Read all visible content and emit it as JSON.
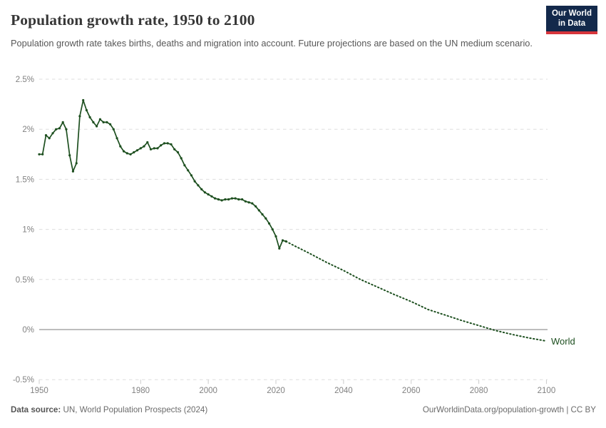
{
  "header": {
    "title": "Population growth rate, 1950 to 2100",
    "subtitle": "Population growth rate takes births, deaths and migration into account. Future projections are based on the UN medium scenario.",
    "logo": {
      "line1": "Our World",
      "line2": "in Data"
    }
  },
  "chart_data": {
    "type": "line",
    "title": "Population growth rate, 1950 to 2100",
    "xlabel": "",
    "ylabel": "",
    "unit": "%",
    "xlim": [
      1950,
      2100
    ],
    "ylim": [
      -0.5,
      2.5
    ],
    "grid": "dashed horizontal gridlines, solid zero line",
    "legend_position": "end-of-line entity label",
    "entity_label": "World",
    "y_ticks": [
      {
        "value": 2.5,
        "label": "2.5%"
      },
      {
        "value": 2.0,
        "label": "2%"
      },
      {
        "value": 1.5,
        "label": "1.5%"
      },
      {
        "value": 1.0,
        "label": "1%"
      },
      {
        "value": 0.5,
        "label": "0.5%"
      },
      {
        "value": 0.0,
        "label": "0%"
      },
      {
        "value": -0.5,
        "label": "-0.5%"
      }
    ],
    "x_ticks": [
      {
        "value": 1950,
        "label": "1950"
      },
      {
        "value": 1980,
        "label": "1980"
      },
      {
        "value": 2000,
        "label": "2000"
      },
      {
        "value": 2020,
        "label": "2020"
      },
      {
        "value": 2040,
        "label": "2040"
      },
      {
        "value": 2060,
        "label": "2060"
      },
      {
        "value": 2080,
        "label": "2080"
      },
      {
        "value": 2100,
        "label": "2100"
      }
    ],
    "series": [
      {
        "name": "World (observed)",
        "style": "solid",
        "markers": true,
        "points": [
          [
            1950,
            1.75
          ],
          [
            1951,
            1.75
          ],
          [
            1952,
            1.94
          ],
          [
            1953,
            1.91
          ],
          [
            1954,
            1.96
          ],
          [
            1955,
            2.0
          ],
          [
            1956,
            2.01
          ],
          [
            1957,
            2.07
          ],
          [
            1958,
            2.0
          ],
          [
            1959,
            1.74
          ],
          [
            1960,
            1.58
          ],
          [
            1961,
            1.66
          ],
          [
            1962,
            2.13
          ],
          [
            1963,
            2.29
          ],
          [
            1964,
            2.19
          ],
          [
            1965,
            2.12
          ],
          [
            1966,
            2.07
          ],
          [
            1967,
            2.03
          ],
          [
            1968,
            2.1
          ],
          [
            1969,
            2.07
          ],
          [
            1970,
            2.07
          ],
          [
            1971,
            2.05
          ],
          [
            1972,
            2.0
          ],
          [
            1973,
            1.91
          ],
          [
            1974,
            1.83
          ],
          [
            1975,
            1.78
          ],
          [
            1976,
            1.76
          ],
          [
            1977,
            1.75
          ],
          [
            1978,
            1.77
          ],
          [
            1979,
            1.79
          ],
          [
            1980,
            1.81
          ],
          [
            1981,
            1.83
          ],
          [
            1982,
            1.87
          ],
          [
            1983,
            1.8
          ],
          [
            1984,
            1.81
          ],
          [
            1985,
            1.81
          ],
          [
            1986,
            1.84
          ],
          [
            1987,
            1.86
          ],
          [
            1988,
            1.86
          ],
          [
            1989,
            1.85
          ],
          [
            1990,
            1.8
          ],
          [
            1991,
            1.77
          ],
          [
            1992,
            1.71
          ],
          [
            1993,
            1.64
          ],
          [
            1994,
            1.59
          ],
          [
            1995,
            1.54
          ],
          [
            1996,
            1.48
          ],
          [
            1997,
            1.44
          ],
          [
            1998,
            1.4
          ],
          [
            1999,
            1.37
          ],
          [
            2000,
            1.35
          ],
          [
            2001,
            1.33
          ],
          [
            2002,
            1.31
          ],
          [
            2003,
            1.3
          ],
          [
            2004,
            1.29
          ],
          [
            2005,
            1.3
          ],
          [
            2006,
            1.3
          ],
          [
            2007,
            1.31
          ],
          [
            2008,
            1.31
          ],
          [
            2009,
            1.3
          ],
          [
            2010,
            1.3
          ],
          [
            2011,
            1.28
          ],
          [
            2012,
            1.27
          ],
          [
            2013,
            1.26
          ],
          [
            2014,
            1.23
          ],
          [
            2015,
            1.19
          ],
          [
            2016,
            1.15
          ],
          [
            2017,
            1.11
          ],
          [
            2018,
            1.06
          ],
          [
            2019,
            1.0
          ],
          [
            2020,
            0.93
          ],
          [
            2021,
            0.81
          ],
          [
            2022,
            0.89
          ],
          [
            2023,
            0.88
          ]
        ]
      },
      {
        "name": "World (UN medium scenario projection)",
        "style": "dotted",
        "markers": false,
        "points": [
          [
            2023,
            0.88
          ],
          [
            2025,
            0.845
          ],
          [
            2030,
            0.76
          ],
          [
            2035,
            0.67
          ],
          [
            2040,
            0.59
          ],
          [
            2045,
            0.5
          ],
          [
            2050,
            0.425
          ],
          [
            2055,
            0.35
          ],
          [
            2060,
            0.28
          ],
          [
            2065,
            0.2
          ],
          [
            2070,
            0.145
          ],
          [
            2075,
            0.09
          ],
          [
            2080,
            0.04
          ],
          [
            2085,
            -0.01
          ],
          [
            2090,
            -0.05
          ],
          [
            2095,
            -0.085
          ],
          [
            2100,
            -0.115
          ]
        ]
      }
    ]
  },
  "footer": {
    "source_label": "Data source:",
    "source_text": " UN, World Population Prospects (2024)",
    "link_text": "OurWorldinData.org/population-growth | CC BY"
  },
  "colors": {
    "line": "#1d4f1f",
    "grid": "#dedede",
    "zero_line": "#bdbdbd",
    "tick_mark": "#cccccc",
    "tick_text": "#818181",
    "logo_bg": "#13294b",
    "logo_bar": "#d7353c"
  }
}
